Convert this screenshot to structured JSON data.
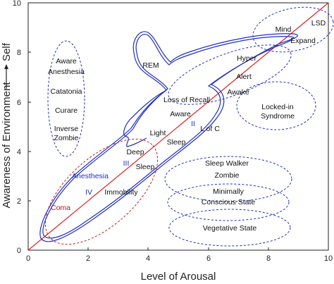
{
  "axes": {
    "x_label": "Level of Arousal",
    "y_label": "Awareness of Environment",
    "y_label_suffix": "Self",
    "x_ticks": [
      "0",
      "2",
      "4",
      "6",
      "8",
      "10"
    ],
    "y_ticks": [
      "0",
      "2",
      "4",
      "6",
      "8",
      "10"
    ]
  },
  "diagonal_color": "#e02020",
  "region_color": "#1f2fbf",
  "coma_color": "#b01818",
  "labels": {
    "lsd": "LSD",
    "mind": "Mind",
    "expand": "Expand",
    "rem": "REM",
    "hyper": "Hyper",
    "alert": "Alert",
    "awake_top": "Awake",
    "loss_of_recall": "Loss of Recall",
    "aware": "Aware",
    "roman_2": "II",
    "l_of_c": "L of C",
    "light": "Light",
    "sleep": "Sleep",
    "deep": "Deep",
    "roman_3": "III",
    "sleep_deep": "Sleep",
    "anesthesia": "Anesthesia",
    "roman_4": "IV",
    "immobility": "Immobility",
    "coma": "Coma",
    "aware_anesthesia_1": "Aware",
    "aware_anesthesia_2": "Anesthesia",
    "catatonia": "Catatonia",
    "curare": "Curare",
    "inverse": "Inverse",
    "zombie": "Zombie",
    "locked_in_1": "Locked-in",
    "locked_in_2": "Syndrome",
    "sleep_walker": "Sleep Walker",
    "zombie_sw": "Zombie",
    "minimally_1": "Minimally",
    "minimally_2": "Conscious State",
    "vegetative": "Vegetative State"
  }
}
